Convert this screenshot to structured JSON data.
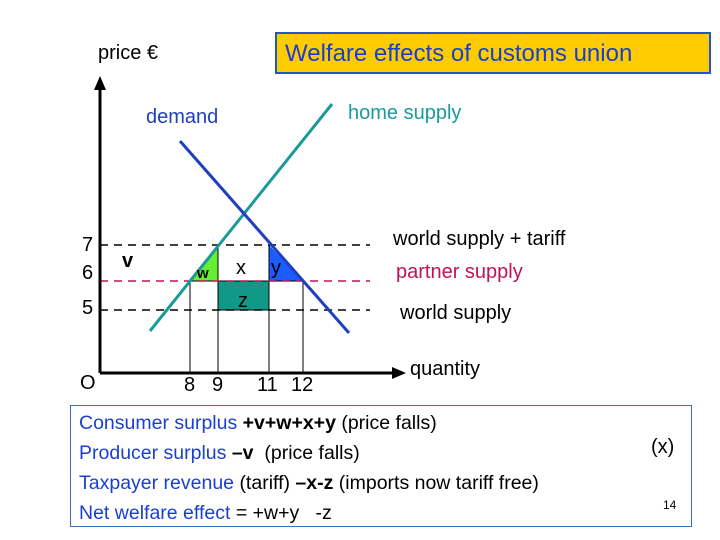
{
  "title": "Welfare effects of customs union",
  "axes": {
    "y_label": "price €",
    "x_label": "quantity",
    "origin": "O",
    "y_ticks": [
      "7",
      "6",
      "5"
    ],
    "x_ticks": [
      "8",
      "9",
      "11",
      "12"
    ]
  },
  "curves": {
    "demand": "demand",
    "home_supply": "home supply"
  },
  "price_lines": {
    "world_tariff": "world supply + tariff",
    "partner": "partner supply",
    "world": "world supply"
  },
  "areas": {
    "v": "v",
    "w": "w",
    "x": "x",
    "y": "y",
    "z": "z"
  },
  "colors": {
    "demand": "#1f3fbf",
    "home_supply": "#1a9a9a",
    "partner_supply": "#c0125a",
    "w": "#66ee33",
    "y": "#1a5cff",
    "z": "#119988",
    "title_bg": "#FFCC00",
    "text_blue": "#1a3fd0"
  },
  "notes": [
    {
      "label": "Consumer surplus",
      "bold": "+v+w+x+y",
      "rest": "(price falls)"
    },
    {
      "label": "Producer surplus",
      "bold": "–v",
      "rest": "(price falls)"
    },
    {
      "label": "Taxpayer revenue",
      "pre": "(tariff)",
      "bold": "–x-z",
      "rest": "(imports now tariff free)"
    },
    {
      "label": "Net welfare effect",
      "rest": "= +w+y   -z"
    }
  ],
  "side_note": "(x)",
  "page_number": "14"
}
